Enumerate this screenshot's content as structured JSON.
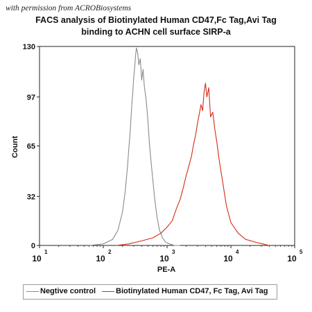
{
  "watermark": "with permission from ACROBiosystems",
  "chart_data": {
    "type": "line",
    "title_line1": "FACS analysis of Biotinylated Human CD47,Fc Tag,Avi Tag",
    "title_line2": "binding to ACHN cell surface SIRP-a",
    "xlabel": "PE-A",
    "ylabel": "Count",
    "x_scale": "log",
    "xlim": [
      10,
      100000
    ],
    "ylim": [
      0,
      130
    ],
    "y_ticks": [
      0,
      32,
      65,
      97,
      130
    ],
    "x_ticks": [
      {
        "base": "10",
        "exp": "1",
        "value": 10
      },
      {
        "base": "10",
        "exp": "2",
        "value": 100
      },
      {
        "base": "10",
        "exp": "3",
        "value": 1000
      },
      {
        "base": "10",
        "exp": "4",
        "value": 10000
      },
      {
        "base": "10",
        "exp": "5",
        "value": 100000
      }
    ],
    "series": [
      {
        "name": "Negtive control",
        "color": "#8a8a8a",
        "x": [
          60,
          100,
          140,
          170,
          200,
          220,
          240,
          250,
          265,
          280,
          290,
          300,
          310,
          320,
          330,
          345,
          360,
          380,
          400,
          420,
          440,
          470,
          500,
          530,
          560,
          600,
          640,
          700,
          760,
          850,
          950,
          1100,
          1300,
          1600
        ],
        "y": [
          0,
          1,
          4,
          10,
          22,
          35,
          52,
          62,
          75,
          92,
          100,
          110,
          116,
          124,
          129,
          126,
          118,
          122,
          108,
          115,
          104,
          95,
          82,
          66,
          55,
          42,
          30,
          18,
          10,
          5,
          2,
          1,
          0,
          0
        ]
      },
      {
        "name": "Biotinylated Human CD47, Fc Tag, Avi Tag",
        "color": "#d42a12",
        "x": [
          160,
          250,
          400,
          600,
          800,
          1000,
          1200,
          1400,
          1600,
          1800,
          2000,
          2200,
          2400,
          2600,
          2800,
          3000,
          3200,
          3400,
          3600,
          3800,
          4000,
          4200,
          4500,
          4800,
          5200,
          5600,
          6000,
          6600,
          7400,
          8500,
          10000,
          13000,
          17000,
          25000,
          40000
        ],
        "y": [
          0,
          1,
          3,
          5,
          8,
          12,
          16,
          24,
          30,
          38,
          46,
          52,
          58,
          66,
          72,
          80,
          86,
          92,
          88,
          100,
          106,
          97,
          103,
          84,
          87,
          76,
          68,
          55,
          42,
          26,
          15,
          8,
          4,
          2,
          0
        ]
      }
    ]
  }
}
